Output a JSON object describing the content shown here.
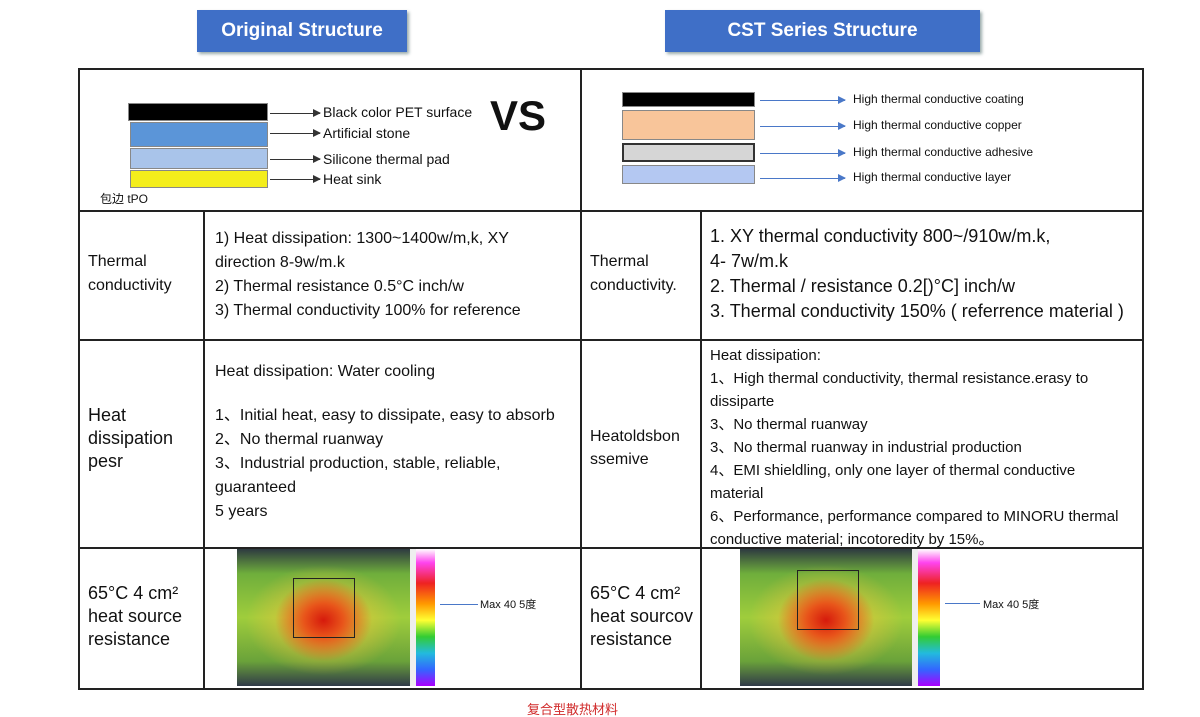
{
  "header": {
    "left_title": "Original Structure",
    "right_title": "CST Series Structure"
  },
  "diagram": {
    "left_layers": [
      "Black color PET surface",
      "Artificial stone",
      "Silicone thermal  pad",
      "Heat sink"
    ],
    "left_note": "包边 tPO",
    "vs": "VS",
    "right_layers": [
      "High thermal conductive coating",
      "High thermal conductive copper",
      "High thermal conductive adhesive",
      "High thermal conductive layer"
    ]
  },
  "table": {
    "rows": [
      {
        "left_label": [
          "Thermal",
          "conductivity"
        ],
        "left_text": [
          "1)  Heat dissipation:  1300~1400w/m,k,  XY",
          "direction 8-9w/m.k",
          "2)  Thermal resistance 0.5°C inch/w",
          "3)  Thermal conductivity 100% for reference"
        ],
        "right_label": [
          "Thermal",
          "conductivity."
        ],
        "right_text": [
          "1. XY thermal conductivity 800~/910w/m.k,",
          "4- 7w/m.k",
          "2.  Thermal  /  resistance 0.2[)°C] inch/w",
          "3.  Thermal conductivity 150% ( referrence material )"
        ]
      },
      {
        "left_label": [
          "Heat",
          "dissipation",
          "pesr"
        ],
        "left_text": [
          "Heat dissipation: Water cooling",
          "1、Initial heat, easy to dissipate, easy to absorb",
          "2、No thermal ruanway",
          "3、Industrial production, stable, reliable,",
          "guaranteed",
          "5 years"
        ],
        "right_label": [
          "Heatoldsbon",
          "ssemive"
        ],
        "right_text": [
          "Heat dissipation:",
          "1、High thermal conductivity, thermal resistance.erasy to",
          "dissiparte",
          "3、No thermal ruanway",
          "3、No thermal ruanway in industrial production",
          "4、EMI shieldling, only one layer of thermal conductive",
          "material",
          "6、Performance, performance compared to MINORU thermal",
          "conductive material; incotoredity by 15%。"
        ]
      },
      {
        "left_label": [
          "65°C 4 cm²",
          "heat source",
          "resistance"
        ],
        "left_image_label": "Max 40 5度",
        "right_label": [
          "65°C 4 cm²",
          "heat sourcov",
          "resistance"
        ],
        "right_image_label": "Max 40 5度"
      }
    ]
  },
  "footer": "复合型散热材料"
}
